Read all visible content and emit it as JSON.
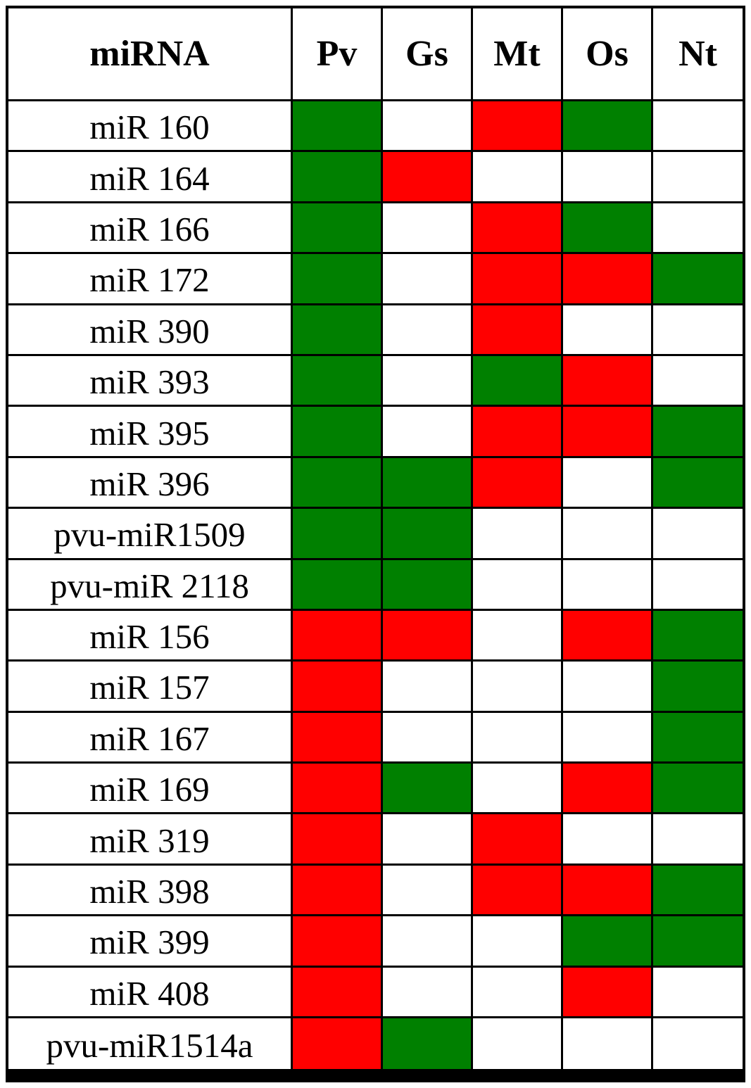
{
  "chart_data": {
    "type": "heatmap",
    "corner_label": "miRNA",
    "columns": [
      "Pv",
      "Gs",
      "Mt",
      "Os",
      "Nt"
    ],
    "rows": [
      {
        "label": "miR 160",
        "cells": [
          "G",
          "",
          "R",
          "G",
          ""
        ]
      },
      {
        "label": "miR 164",
        "cells": [
          "G",
          "R",
          "",
          "",
          ""
        ]
      },
      {
        "label": "miR 166",
        "cells": [
          "G",
          "",
          "R",
          "G",
          ""
        ]
      },
      {
        "label": "miR 172",
        "cells": [
          "G",
          "",
          "R",
          "R",
          "G"
        ]
      },
      {
        "label": "miR 390",
        "cells": [
          "G",
          "",
          "R",
          "",
          ""
        ]
      },
      {
        "label": "miR 393",
        "cells": [
          "G",
          "",
          "G",
          "R",
          ""
        ]
      },
      {
        "label": "miR 395",
        "cells": [
          "G",
          "",
          "R",
          "R",
          "G"
        ]
      },
      {
        "label": "miR 396",
        "cells": [
          "G",
          "G",
          "R",
          "",
          "G"
        ]
      },
      {
        "label": "pvu-miR1509",
        "cells": [
          "G",
          "G",
          "",
          "",
          ""
        ]
      },
      {
        "label": "pvu-miR 2118",
        "cells": [
          "G",
          "G",
          "",
          "",
          ""
        ]
      },
      {
        "label": "miR 156",
        "cells": [
          "R",
          "R",
          "",
          "R",
          "G"
        ]
      },
      {
        "label": "miR 157",
        "cells": [
          "R",
          "",
          "",
          "",
          "G"
        ]
      },
      {
        "label": "miR 167",
        "cells": [
          "R",
          "",
          "",
          "",
          "G"
        ]
      },
      {
        "label": "miR 169",
        "cells": [
          "R",
          "G",
          "",
          "R",
          "G"
        ]
      },
      {
        "label": "miR 319",
        "cells": [
          "R",
          "",
          "R",
          "",
          ""
        ]
      },
      {
        "label": "miR 398",
        "cells": [
          "R",
          "",
          "R",
          "R",
          "G"
        ]
      },
      {
        "label": "miR 399",
        "cells": [
          "R",
          "",
          "",
          "G",
          "G"
        ]
      },
      {
        "label": "miR 408",
        "cells": [
          "R",
          "",
          "",
          "R",
          ""
        ]
      },
      {
        "label": "pvu-miR1514a",
        "cells": [
          "R",
          "G",
          "",
          "",
          ""
        ]
      }
    ],
    "colors": {
      "G": "#008000",
      "R": "#ff0000",
      "empty": "#ffffff"
    }
  }
}
